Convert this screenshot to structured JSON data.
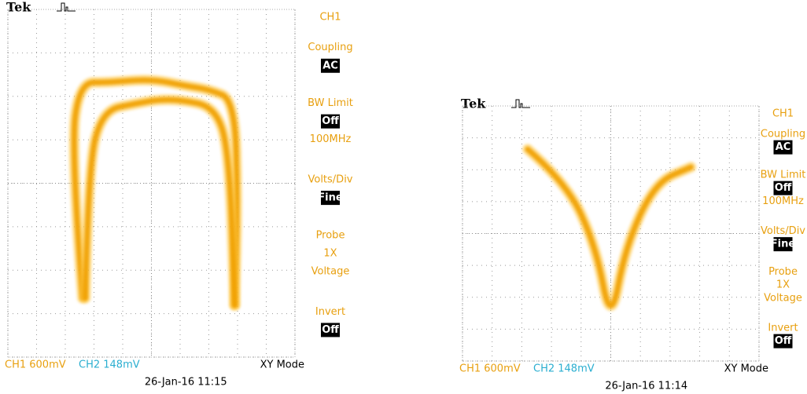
{
  "screens": [
    {
      "brand": "Tek",
      "channel": "CH1",
      "menu": [
        {
          "label": "Coupling",
          "value": "AC"
        },
        {
          "label": "BW Limit",
          "value": "Off",
          "details": [
            "100MHz"
          ]
        },
        {
          "label": "Volts/Div",
          "value": "Fine"
        },
        {
          "label": "Probe",
          "details": [
            "1X",
            "Voltage"
          ]
        },
        {
          "label": "Invert",
          "value": "Off"
        }
      ],
      "ch1": "CH1  600mV",
      "ch2": "CH2  148mV",
      "mode": "XY Mode",
      "timestamp": "26-Jan-16 11:15"
    },
    {
      "brand": "Tek",
      "channel": "CH1",
      "menu": [
        {
          "label": "Coupling",
          "value": "AC"
        },
        {
          "label": "BW Limit",
          "value": "Off",
          "details": [
            "100MHz"
          ]
        },
        {
          "label": "Volts/Div",
          "value": "Fine"
        },
        {
          "label": "Probe",
          "details": [
            "1X",
            "Voltage"
          ]
        },
        {
          "label": "Invert",
          "value": "Off"
        }
      ],
      "ch1": "CH1  600mV",
      "ch2": "CH2  148mV",
      "mode": "XY Mode",
      "timestamp": "26-Jan-16 11:14"
    }
  ]
}
